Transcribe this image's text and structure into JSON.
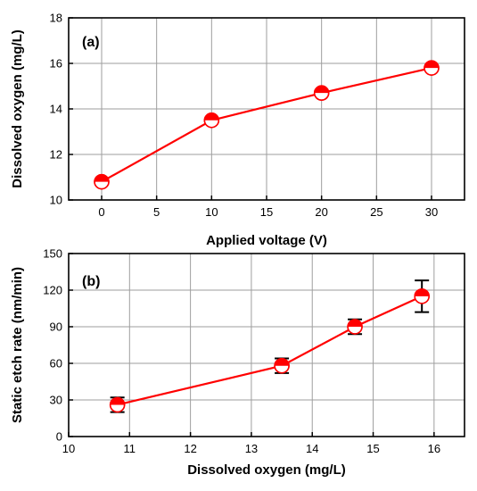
{
  "chart_data": [
    {
      "type": "line",
      "panel_label": "(a)",
      "xlabel": "Applied voltage (V)",
      "ylabel": "Dissolved oxygen (mg/L)",
      "xlim": [
        -3,
        33
      ],
      "ylim": [
        10,
        18
      ],
      "xticks": [
        0,
        5,
        10,
        15,
        20,
        25,
        30
      ],
      "yticks": [
        10,
        12,
        14,
        16,
        18
      ],
      "grid": true,
      "series": [
        {
          "x": [
            0,
            10,
            20,
            30
          ],
          "y": [
            10.8,
            13.5,
            14.7,
            15.8
          ],
          "color": "#ff0000"
        }
      ]
    },
    {
      "type": "line",
      "panel_label": "(b)",
      "xlabel": "Dissolved oxygen (mg/L)",
      "ylabel": "Static etch rate (nm/min)",
      "xlim": [
        10,
        16.5
      ],
      "ylim": [
        0,
        150
      ],
      "xticks": [
        10,
        11,
        12,
        13,
        14,
        15,
        16
      ],
      "yticks": [
        0,
        30,
        60,
        90,
        120,
        150
      ],
      "grid": true,
      "series": [
        {
          "x": [
            10.8,
            13.5,
            14.7,
            15.8
          ],
          "y": [
            26,
            58,
            90,
            115
          ],
          "error": [
            6,
            6,
            6,
            13
          ],
          "color": "#ff0000"
        }
      ]
    }
  ]
}
